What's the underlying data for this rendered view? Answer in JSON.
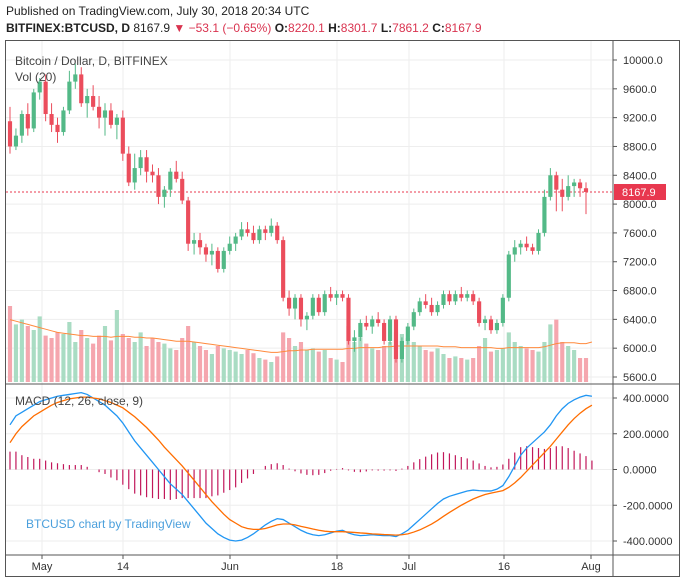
{
  "header": {
    "published": "Published on TradingView.com, July 30, 2018 20:34 UTC",
    "symbol": "BITFINEX:BTCUSD, D",
    "last": "8167.9",
    "change": "−53.1 (−0.65%)",
    "o_label": "O:",
    "o": "8220.1",
    "h_label": "H:",
    "h": "8301.7",
    "l_label": "L:",
    "l": "7861.2",
    "c_label": "C:",
    "c": "8167.9"
  },
  "price_pane": {
    "title": "Bitcoin / Dollar, D, BITFINEX",
    "volume_label": "Vol (20)",
    "last_price_badge": "8167.9",
    "y_ticks": [
      "10000.0",
      "9600.0",
      "9200.0",
      "8800.0",
      "8400.0",
      "8000.0",
      "7600.0",
      "7200.0",
      "6800.0",
      "6400.0",
      "6000.0",
      "5600.0"
    ]
  },
  "macd_pane": {
    "title": "MACD (12, 26, close, 9)",
    "y_ticks": [
      "400.0000",
      "200.0000",
      "0.0000",
      "-200.0000",
      "-400.0000"
    ]
  },
  "x_ticks": [
    "May",
    "14",
    "Jun",
    "18",
    "Jul",
    "16",
    "Aug"
  ],
  "watermark": "BTCUSD chart by TradingView",
  "colors": {
    "up": "#53b987",
    "down": "#eb4d5c",
    "vol_up": "#a9dcc3",
    "vol_down": "#f5a6ae",
    "macd": "#2196f3",
    "signal": "#ff6d00",
    "hist": "#c2185b"
  },
  "chart_data": [
    {
      "type": "candlestick",
      "title": "Bitcoin / Dollar, D, BITFINEX",
      "interval": "D",
      "ylim": [
        5550,
        10150
      ],
      "candles_ohlc": [
        [
          9150,
          9350,
          8700,
          8800
        ],
        [
          8800,
          9050,
          8750,
          8950
        ],
        [
          8950,
          9300,
          8850,
          9250
        ],
        [
          9250,
          9400,
          8950,
          9050
        ],
        [
          9050,
          9600,
          9000,
          9550
        ],
        [
          9550,
          9750,
          9450,
          9700
        ],
        [
          9700,
          9800,
          9150,
          9250
        ],
        [
          9250,
          9400,
          9000,
          9100
        ],
        [
          9100,
          9200,
          8850,
          9000
        ],
        [
          9000,
          9350,
          8950,
          9300
        ],
        [
          9300,
          9850,
          9250,
          9700
        ],
        [
          9700,
          9950,
          9600,
          9800
        ],
        [
          9800,
          9900,
          9350,
          9400
        ],
        [
          9400,
          9600,
          9200,
          9500
        ],
        [
          9500,
          9650,
          9300,
          9350
        ],
        [
          9350,
          9500,
          9050,
          9200
        ],
        [
          9200,
          9400,
          8950,
          9300
        ],
        [
          9300,
          9400,
          9050,
          9100
        ],
        [
          9100,
          9250,
          8900,
          9200
        ],
        [
          9200,
          9300,
          8600,
          8700
        ],
        [
          8700,
          8800,
          8250,
          8300
        ],
        [
          8300,
          8700,
          8200,
          8500
        ],
        [
          8500,
          8750,
          8400,
          8650
        ],
        [
          8650,
          8750,
          8300,
          8450
        ],
        [
          8450,
          8550,
          8300,
          8400
        ],
        [
          8400,
          8500,
          8000,
          8100
        ],
        [
          8100,
          8250,
          7950,
          8200
        ],
        [
          8200,
          8500,
          8100,
          8450
        ],
        [
          8450,
          8600,
          8300,
          8350
        ],
        [
          8350,
          8450,
          8000,
          8050
        ],
        [
          8050,
          8100,
          7350,
          7450
        ],
        [
          7450,
          7600,
          7300,
          7500
        ],
        [
          7500,
          7600,
          7300,
          7400
        ],
        [
          7400,
          7450,
          7200,
          7300
        ],
        [
          7300,
          7450,
          7150,
          7350
        ],
        [
          7350,
          7400,
          7050,
          7100
        ],
        [
          7100,
          7400,
          7050,
          7350
        ],
        [
          7350,
          7550,
          7300,
          7450
        ],
        [
          7450,
          7600,
          7350,
          7550
        ],
        [
          7550,
          7750,
          7500,
          7650
        ],
        [
          7650,
          7750,
          7550,
          7600
        ],
        [
          7600,
          7700,
          7450,
          7500
        ],
        [
          7500,
          7700,
          7450,
          7650
        ],
        [
          7650,
          7700,
          7500,
          7600
        ],
        [
          7600,
          7800,
          7550,
          7700
        ],
        [
          7700,
          7750,
          7450,
          7500
        ],
        [
          7500,
          7550,
          6650,
          6700
        ],
        [
          6700,
          6800,
          6450,
          6550
        ],
        [
          6550,
          6750,
          6400,
          6700
        ],
        [
          6700,
          6750,
          6300,
          6400
        ],
        [
          6400,
          6500,
          6250,
          6450
        ],
        [
          6450,
          6750,
          6400,
          6700
        ],
        [
          6700,
          6750,
          6450,
          6500
        ],
        [
          6500,
          6800,
          6450,
          6750
        ],
        [
          6750,
          6850,
          6650,
          6700
        ],
        [
          6700,
          6800,
          6600,
          6750
        ],
        [
          6750,
          6800,
          6650,
          6700
        ],
        [
          6700,
          6750,
          6050,
          6100
        ],
        [
          6100,
          6250,
          5950,
          6150
        ],
        [
          6150,
          6400,
          6100,
          6350
        ],
        [
          6350,
          6450,
          6250,
          6300
        ],
        [
          6300,
          6450,
          6200,
          6400
        ],
        [
          6400,
          6500,
          6300,
          6350
        ],
        [
          6350,
          6400,
          6050,
          6100
        ],
        [
          6100,
          6450,
          6050,
          6400
        ],
        [
          6400,
          6450,
          5800,
          5850
        ],
        [
          5850,
          6150,
          5800,
          6100
        ],
        [
          6100,
          6350,
          6050,
          6300
        ],
        [
          6300,
          6550,
          6250,
          6500
        ],
        [
          6500,
          6700,
          6450,
          6650
        ],
        [
          6650,
          6750,
          6550,
          6600
        ],
        [
          6600,
          6700,
          6450,
          6500
        ],
        [
          6500,
          6650,
          6450,
          6600
        ],
        [
          6600,
          6800,
          6550,
          6750
        ],
        [
          6750,
          6800,
          6600,
          6650
        ],
        [
          6650,
          6800,
          6600,
          6750
        ],
        [
          6750,
          6850,
          6650,
          6700
        ],
        [
          6700,
          6800,
          6650,
          6750
        ],
        [
          6750,
          6800,
          6600,
          6650
        ],
        [
          6650,
          6700,
          6300,
          6350
        ],
        [
          6350,
          6450,
          6250,
          6400
        ],
        [
          6400,
          6450,
          6200,
          6250
        ],
        [
          6250,
          6400,
          6200,
          6350
        ],
        [
          6350,
          6750,
          6300,
          6700
        ],
        [
          6700,
          7350,
          6650,
          7300
        ],
        [
          7300,
          7500,
          7200,
          7400
        ],
        [
          7400,
          7500,
          7300,
          7450
        ],
        [
          7450,
          7550,
          7350,
          7400
        ],
        [
          7400,
          7450,
          7300,
          7350
        ],
        [
          7350,
          7650,
          7300,
          7600
        ],
        [
          7600,
          8200,
          7550,
          8100
        ],
        [
          8100,
          8500,
          8050,
          8400
        ],
        [
          8400,
          8450,
          7900,
          8200
        ],
        [
          8200,
          8350,
          7900,
          8100
        ],
        [
          8100,
          8400,
          8050,
          8250
        ],
        [
          8250,
          8350,
          8100,
          8300
        ],
        [
          8300,
          8350,
          8100,
          8220
        ],
        [
          8220.1,
          8301.7,
          7861.2,
          8167.9
        ]
      ],
      "volume": [
        0.95,
        0.72,
        0.78,
        0.7,
        0.65,
        0.82,
        0.58,
        0.55,
        0.62,
        0.6,
        0.75,
        0.5,
        0.65,
        0.55,
        0.48,
        0.58,
        0.7,
        0.52,
        0.9,
        0.6,
        0.55,
        0.5,
        0.62,
        0.45,
        0.55,
        0.5,
        0.48,
        0.42,
        0.4,
        0.55,
        0.7,
        0.5,
        0.45,
        0.4,
        0.35,
        0.45,
        0.42,
        0.4,
        0.38,
        0.35,
        0.4,
        0.36,
        0.3,
        0.28,
        0.25,
        0.32,
        0.62,
        0.55,
        0.45,
        0.5,
        0.4,
        0.42,
        0.38,
        0.4,
        0.3,
        0.28,
        0.25,
        0.7,
        0.5,
        0.55,
        0.48,
        0.42,
        0.4,
        0.45,
        0.5,
        0.62,
        0.6,
        0.55,
        0.5,
        0.45,
        0.4,
        0.38,
        0.42,
        0.35,
        0.3,
        0.32,
        0.3,
        0.28,
        0.3,
        0.45,
        0.55,
        0.38,
        0.4,
        0.42,
        0.62,
        0.5,
        0.45,
        0.42,
        0.4,
        0.38,
        0.5,
        0.72,
        0.78,
        0.5,
        0.45,
        0.4,
        0.3,
        0.3,
        0.62
      ],
      "volume_ma": [
        0.78,
        0.76,
        0.74,
        0.72,
        0.7,
        0.68,
        0.66,
        0.64,
        0.62,
        0.61,
        0.6,
        0.59,
        0.58,
        0.58,
        0.57,
        0.57,
        0.57,
        0.56,
        0.57,
        0.57,
        0.57,
        0.56,
        0.56,
        0.55,
        0.55,
        0.54,
        0.53,
        0.52,
        0.51,
        0.51,
        0.51,
        0.5,
        0.49,
        0.48,
        0.47,
        0.46,
        0.45,
        0.44,
        0.43,
        0.42,
        0.41,
        0.4,
        0.39,
        0.38,
        0.37,
        0.37,
        0.38,
        0.39,
        0.39,
        0.4,
        0.4,
        0.41,
        0.41,
        0.41,
        0.41,
        0.41,
        0.41,
        0.42,
        0.42,
        0.43,
        0.43,
        0.43,
        0.43,
        0.44,
        0.44,
        0.45,
        0.45,
        0.45,
        0.45,
        0.45,
        0.45,
        0.45,
        0.45,
        0.44,
        0.44,
        0.44,
        0.43,
        0.43,
        0.43,
        0.43,
        0.43,
        0.43,
        0.42,
        0.42,
        0.43,
        0.43,
        0.43,
        0.43,
        0.43,
        0.43,
        0.44,
        0.46,
        0.48,
        0.49,
        0.49,
        0.49,
        0.48,
        0.48,
        0.5
      ]
    },
    {
      "type": "macd",
      "title": "MACD (12, 26, close, 9)",
      "ylim": [
        -460,
        460
      ],
      "macd": [
        250,
        300,
        320,
        340,
        360,
        380,
        390,
        400,
        410,
        415,
        420,
        425,
        430,
        420,
        400,
        380,
        360,
        330,
        300,
        260,
        210,
        160,
        120,
        80,
        40,
        0,
        -40,
        -80,
        -110,
        -140,
        -180,
        -220,
        -260,
        -300,
        -330,
        -360,
        -380,
        -395,
        -400,
        -395,
        -380,
        -360,
        -335,
        -310,
        -290,
        -275,
        -280,
        -300,
        -320,
        -340,
        -355,
        -365,
        -370,
        -365,
        -355,
        -345,
        -340,
        -355,
        -365,
        -370,
        -368,
        -365,
        -368,
        -370,
        -370,
        -375,
        -360,
        -340,
        -310,
        -280,
        -250,
        -220,
        -190,
        -165,
        -150,
        -140,
        -130,
        -120,
        -115,
        -118,
        -120,
        -120,
        -110,
        -90,
        -40,
        20,
        80,
        120,
        150,
        180,
        210,
        250,
        300,
        340,
        370,
        390,
        405,
        415,
        410
      ],
      "signal": [
        150,
        200,
        240,
        270,
        300,
        320,
        340,
        360,
        375,
        385,
        395,
        400,
        405,
        405,
        400,
        395,
        385,
        375,
        360,
        345,
        320,
        295,
        265,
        235,
        200,
        165,
        125,
        90,
        55,
        20,
        -20,
        -60,
        -100,
        -140,
        -180,
        -215,
        -250,
        -280,
        -300,
        -320,
        -330,
        -335,
        -335,
        -330,
        -320,
        -310,
        -305,
        -305,
        -310,
        -318,
        -325,
        -333,
        -340,
        -345,
        -348,
        -348,
        -348,
        -350,
        -352,
        -355,
        -357,
        -360,
        -362,
        -364,
        -365,
        -367,
        -365,
        -360,
        -350,
        -338,
        -322,
        -305,
        -285,
        -262,
        -240,
        -220,
        -200,
        -182,
        -165,
        -152,
        -140,
        -132,
        -125,
        -118,
        -100,
        -75,
        -45,
        -10,
        25,
        60,
        95,
        130,
        170,
        210,
        250,
        285,
        315,
        340,
        360
      ],
      "histogram": [
        100,
        100,
        80,
        70,
        60,
        60,
        50,
        40,
        35,
        30,
        25,
        25,
        25,
        15,
        0,
        -15,
        -25,
        -45,
        -60,
        -85,
        -110,
        -135,
        -145,
        -155,
        -160,
        -165,
        -165,
        -170,
        -165,
        -160,
        -160,
        -160,
        -160,
        -160,
        -150,
        -145,
        -130,
        -115,
        -100,
        -75,
        -50,
        -25,
        0,
        20,
        30,
        35,
        25,
        5,
        -10,
        -22,
        -30,
        -32,
        -30,
        -20,
        -7,
        3,
        8,
        -5,
        -13,
        -15,
        -11,
        -5,
        -6,
        -6,
        -5,
        -8,
        5,
        20,
        40,
        58,
        72,
        85,
        95,
        97,
        90,
        80,
        70,
        62,
        50,
        34,
        20,
        12,
        15,
        28,
        60,
        95,
        125,
        130,
        125,
        120,
        115,
        120,
        130,
        130,
        120,
        105,
        90,
        75,
        50
      ]
    }
  ]
}
